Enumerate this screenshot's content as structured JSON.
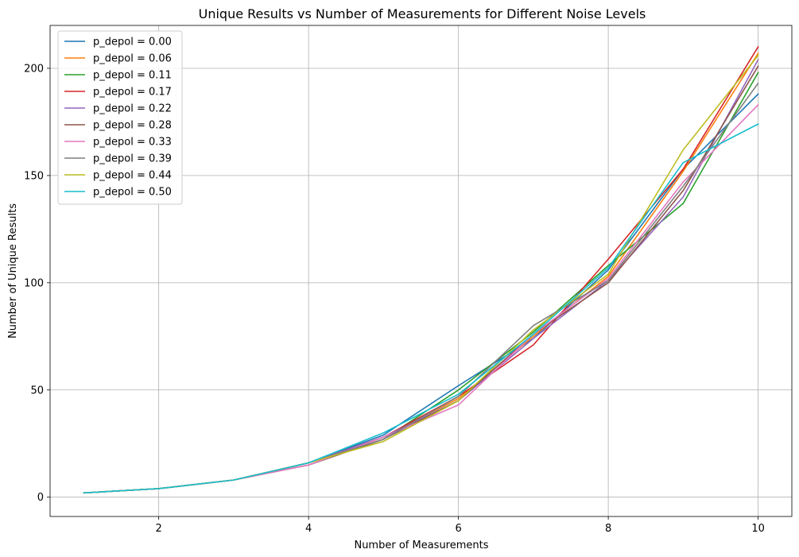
{
  "chart_data": {
    "type": "line",
    "title": "Unique Results vs Number of Measurements for Different Noise Levels",
    "xlabel": "Number of Measurements",
    "ylabel": "Number of Unique Results",
    "xlim": [
      0.55,
      10.45
    ],
    "ylim": [
      -9,
      220
    ],
    "xticks": [
      2,
      4,
      6,
      8,
      10
    ],
    "yticks": [
      0,
      50,
      100,
      150,
      200
    ],
    "grid": true,
    "legend_position": "upper-left",
    "x": [
      1,
      2,
      3,
      4,
      5,
      6,
      7,
      8,
      9,
      10
    ],
    "series": [
      {
        "name": "p_depol = 0.00",
        "color": "#1f77b4",
        "values": [
          2,
          4,
          8,
          16,
          29,
          52,
          74,
          106,
          153,
          188
        ]
      },
      {
        "name": "p_depol = 0.06",
        "color": "#ff7f0e",
        "values": [
          2,
          4,
          8,
          16,
          28,
          46,
          75,
          103,
          152,
          207
        ]
      },
      {
        "name": "p_depol = 0.11",
        "color": "#2ca02c",
        "values": [
          2,
          4,
          8,
          16,
          27,
          50,
          77,
          108,
          137,
          198
        ]
      },
      {
        "name": "p_depol = 0.17",
        "color": "#d62728",
        "values": [
          2,
          4,
          8,
          16,
          28,
          47,
          71,
          111,
          153,
          210
        ]
      },
      {
        "name": "p_depol = 0.22",
        "color": "#9467bd",
        "values": [
          2,
          4,
          8,
          16,
          28,
          45,
          74,
          101,
          140,
          204
        ]
      },
      {
        "name": "p_depol = 0.28",
        "color": "#8c564b",
        "values": [
          2,
          4,
          8,
          15,
          27,
          45,
          76,
          100,
          143,
          201
        ]
      },
      {
        "name": "p_depol = 0.33",
        "color": "#e377c2",
        "values": [
          2,
          4,
          8,
          15,
          28,
          43,
          76,
          102,
          147,
          183
        ]
      },
      {
        "name": "p_depol = 0.39",
        "color": "#7f7f7f",
        "values": [
          2,
          4,
          8,
          16,
          27,
          47,
          80,
          101,
          145,
          193
        ]
      },
      {
        "name": "p_depol = 0.44",
        "color": "#bcbd22",
        "values": [
          2,
          4,
          8,
          16,
          26,
          45,
          78,
          104,
          162,
          206
        ]
      },
      {
        "name": "p_depol = 0.50",
        "color": "#17becf",
        "values": [
          2,
          4,
          8,
          16,
          30,
          48,
          76,
          107,
          156,
          174
        ]
      }
    ]
  }
}
